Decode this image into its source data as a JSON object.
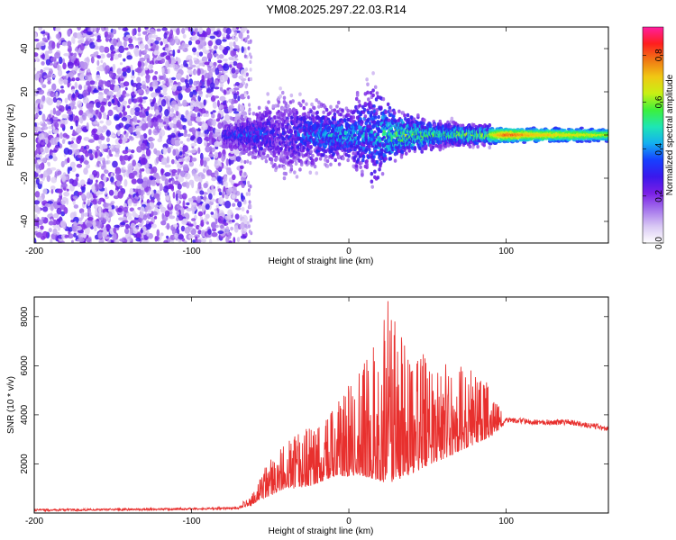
{
  "figure": {
    "title": "YM08.2025.297.22.03.R14"
  },
  "colors": {
    "signal_line": "#e8302e",
    "frame": "#000000",
    "colormap": [
      "#ffffff",
      "#d9c8f4",
      "#a575ec",
      "#7a1fe6",
      "#3a18ec",
      "#1640ff",
      "#14b0f0",
      "#1ee6b4",
      "#3cf03c",
      "#c8f014",
      "#f0c814",
      "#f07814",
      "#ff1e1e",
      "#ff1ea0"
    ]
  },
  "chart_data": [
    {
      "type": "heatmap",
      "name": "spectrogram",
      "xlabel": "Height of straight line (km)",
      "ylabel": "Frequency (Hz)",
      "xlim": [
        -200,
        165
      ],
      "ylim": [
        -50,
        50
      ],
      "xticks": [
        -200,
        -100,
        0,
        100
      ],
      "yticks": [
        -40,
        -20,
        0,
        20,
        40
      ],
      "colorbar": {
        "label": "Normalized spectral amplitude",
        "range": [
          0.0,
          0.92
        ],
        "ticks": [
          0.0,
          0.2,
          0.4,
          0.6,
          0.8
        ]
      },
      "features": {
        "noise_region_x": [
          -200,
          -72
        ],
        "noise_gap_x": [
          -72,
          -60
        ],
        "signal_band_center_hz": 0,
        "signal_profile": [
          {
            "x": -80,
            "half_width": 6,
            "peak": 0.35
          },
          {
            "x": -60,
            "half_width": 10,
            "peak": 0.42
          },
          {
            "x": -45,
            "half_width": 20,
            "peak": 0.3
          },
          {
            "x": -20,
            "half_width": 14,
            "peak": 0.45
          },
          {
            "x": 0,
            "half_width": 12,
            "peak": 0.5
          },
          {
            "x": 15,
            "half_width": 26,
            "peak": 0.45
          },
          {
            "x": 30,
            "half_width": 10,
            "peak": 0.65
          },
          {
            "x": 60,
            "half_width": 5,
            "peak": 0.6
          },
          {
            "x": 90,
            "half_width": 4,
            "peak": 0.7
          },
          {
            "x": 100,
            "half_width": 3,
            "peak": 0.9
          },
          {
            "x": 120,
            "half_width": 3,
            "peak": 0.8
          },
          {
            "x": 165,
            "half_width": 3,
            "peak": 0.7
          }
        ]
      }
    },
    {
      "type": "line",
      "name": "snr",
      "xlabel": "Height of straight line (km)",
      "ylabel": "SNR (10 * v/v)",
      "xlim": [
        -200,
        165
      ],
      "ylim": [
        0,
        8800
      ],
      "xticks": [
        -200,
        -100,
        0,
        100
      ],
      "yticks": [
        2000,
        4000,
        6000,
        8000
      ],
      "envelope": {
        "x": [
          -200,
          -120,
          -70,
          -62,
          -58,
          -50,
          -40,
          -30,
          -20,
          -10,
          0,
          10,
          20,
          25,
          30,
          40,
          50,
          60,
          70,
          80,
          90,
          95,
          100,
          120,
          140,
          150,
          160,
          165
        ],
        "baseline": [
          120,
          150,
          200,
          300,
          500,
          700,
          1000,
          1000,
          1200,
          1500,
          1500,
          1500,
          1300,
          1200,
          1300,
          1600,
          1900,
          2200,
          2500,
          2800,
          3100,
          3300,
          3800,
          3700,
          3700,
          3600,
          3500,
          3400
        ],
        "peak": [
          300,
          350,
          400,
          700,
          1200,
          2300,
          3000,
          3400,
          3600,
          4400,
          5200,
          6400,
          7200,
          8700,
          7800,
          6000,
          6800,
          6200,
          6000,
          5800,
          5200,
          4500,
          4100,
          3950,
          3850,
          3850,
          3800,
          3700
        ]
      }
    }
  ]
}
